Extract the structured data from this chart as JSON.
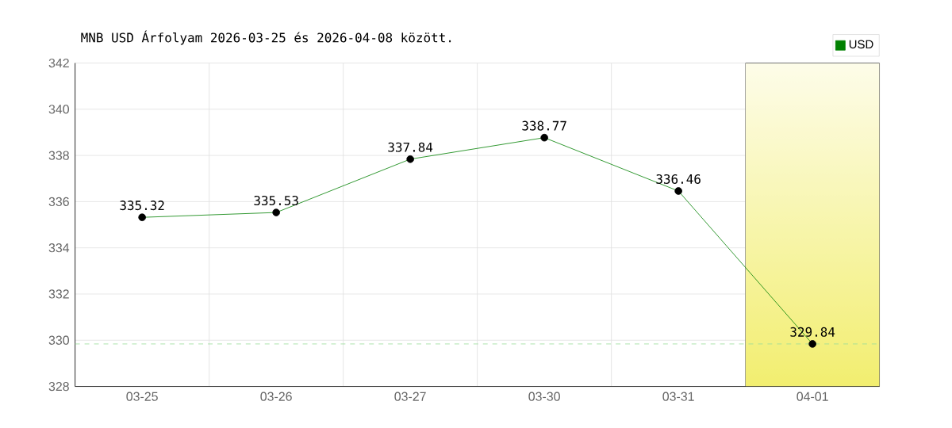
{
  "chart_data": {
    "type": "line",
    "title": "MNB USD Árfolyam 2026-03-25 és 2026-04-08 között.",
    "categories": [
      "03-25",
      "03-26",
      "03-27",
      "03-30",
      "03-31",
      "04-01"
    ],
    "series": [
      {
        "name": "USD",
        "color": "#008000",
        "values": [
          335.32,
          335.53,
          337.84,
          338.77,
          336.46,
          329.84
        ]
      }
    ],
    "ylim": [
      328,
      342
    ],
    "yticks": [
      328,
      330,
      332,
      334,
      336,
      338,
      340,
      342
    ],
    "grid": true,
    "legend": "top right",
    "marker": "circle",
    "line_style": "solid",
    "data_labels": true,
    "ref_lines": [
      {
        "axis": "y",
        "value": 329.84,
        "color": "#99dd99",
        "line_style": "dashed"
      }
    ],
    "bands": [
      {
        "axis": "x",
        "from": "04-01",
        "to": "04-01",
        "color": "#f2ee70"
      }
    ]
  }
}
